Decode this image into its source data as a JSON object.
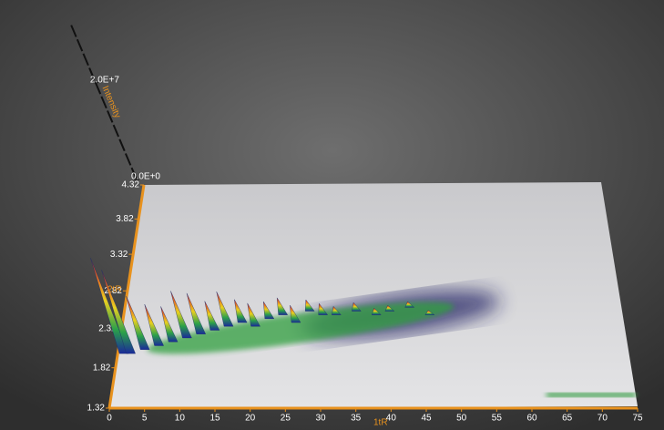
{
  "chart_data": {
    "type": "surface3d",
    "x_label": "1tR",
    "y_label": "2tR",
    "z_label": "Intensity",
    "xlim": [
      0,
      75
    ],
    "xticks": [
      0,
      5,
      10,
      15,
      20,
      25,
      30,
      35,
      40,
      45,
      50,
      55,
      60,
      65,
      70,
      75
    ],
    "ylim": [
      1.32,
      4.32
    ],
    "yticks": [
      1.32,
      1.82,
      2.32,
      2.82,
      3.32,
      3.82,
      4.32
    ],
    "zlim": [
      0,
      32000000
    ],
    "zticks": [
      {
        "value": 0,
        "label": "0.0E+0"
      },
      {
        "value": 20000000,
        "label": "2.0E+7"
      }
    ],
    "peaks": {
      "x": [
        1,
        2,
        4,
        6,
        8,
        10,
        12,
        14,
        16,
        18,
        20,
        22,
        24,
        26,
        28,
        30,
        32,
        35,
        38,
        40,
        43,
        46
      ],
      "y": [
        2.0,
        2.0,
        2.05,
        2.1,
        2.15,
        2.2,
        2.25,
        2.3,
        2.35,
        2.4,
        2.35,
        2.45,
        2.5,
        2.4,
        2.55,
        2.5,
        2.5,
        2.55,
        2.5,
        2.55,
        2.6,
        2.5
      ],
      "z": [
        16000000,
        14000000,
        9000000,
        7000000,
        6000000,
        8000000,
        7000000,
        5000000,
        6000000,
        4000000,
        4000000,
        3000000,
        3000000,
        3000000,
        2000000,
        2000000,
        1500000,
        1500000,
        1200000,
        1000000,
        1000000,
        800000
      ]
    }
  }
}
